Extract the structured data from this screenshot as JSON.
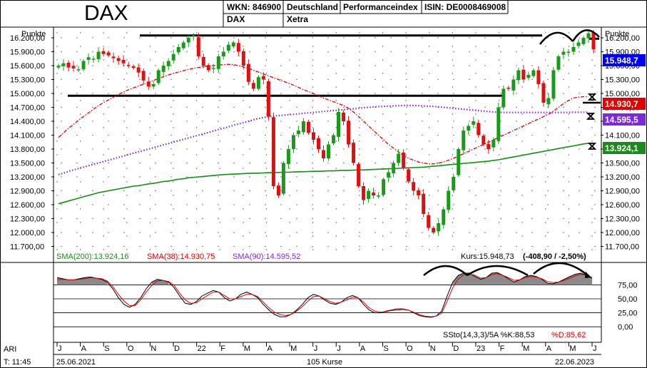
{
  "header": {
    "symbol": "DAX",
    "wkn": "WKN: 846900",
    "name": "DAX",
    "exchange_country": "Deutschland",
    "exchange": "Xetra",
    "index_type": "Performanceindex",
    "isin": "ISIN: DE0008469008"
  },
  "axis": {
    "unit_label": "Punkte"
  },
  "legend": {
    "sma200": "SMA(200):13.924,16",
    "sma38": "SMA(38):14.930,75",
    "sma90": "SMA(90):14.595,52",
    "kurs": "Kurs:15.948,73",
    "kurs_change": "(-408,90 / -2,50%)",
    "sto_label": "SSto(14,3,3)/5A %K:88,53",
    "sto_d": "%D:85,62"
  },
  "badges": [
    {
      "text": "15.948,7",
      "color": "#0000ff"
    },
    {
      "text": "14.930,7",
      "color": "#e00000"
    },
    {
      "text": "14.595,5",
      "color": "#7a2ad8"
    },
    {
      "text": "13.924,1",
      "color": "#1a8a1a"
    }
  ],
  "footer": {
    "ari": "ARI",
    "time": "T: 11:45",
    "start_date": "25.06.2021",
    "count": "105 Kurse",
    "end_date": "22.06.2023"
  },
  "colors": {
    "up": "#1a9a1a",
    "down": "#e01010",
    "sma200": "#1a8a1a",
    "sma38": "#e00000",
    "sma90": "#7a2ad8",
    "stoch_k": "#000000",
    "stoch_d": "#e00000"
  },
  "chart_data": [
    {
      "type": "candlestick",
      "title": "DAX",
      "ylabel": "Punkte",
      "ylim": [
        11600,
        16400
      ],
      "y_ticks": [
        "16.200,00",
        "15.900,00",
        "15.600,00",
        "15.300,00",
        "15.000,00",
        "14.700,00",
        "14.400,00",
        "14.100,00",
        "13.800,00",
        "13.500,00",
        "13.200,00",
        "12.900,00",
        "12.600,00",
        "12.300,00",
        "12.000,00",
        "11.700,00"
      ],
      "x_ticks": [
        "J",
        "A",
        "S",
        "O",
        "N",
        "D",
        "22",
        "F",
        "M",
        "A",
        "M",
        "J",
        "J",
        "A",
        "S",
        "O",
        "N",
        "D",
        "23",
        "F",
        "M",
        "A",
        "M",
        "J"
      ],
      "grid": true,
      "close": [
        15600,
        15650,
        15560,
        15540,
        15520,
        15700,
        15780,
        15750,
        15900,
        15850,
        15820,
        15760,
        15700,
        15650,
        15600,
        15550,
        15450,
        15280,
        15150,
        15200,
        15500,
        15600,
        15700,
        15850,
        16000,
        16100,
        16200,
        16250,
        15800,
        15600,
        15500,
        15550,
        15800,
        15900,
        16050,
        16100,
        15900,
        15600,
        15250,
        15100,
        15350,
        15300,
        14500,
        13000,
        12800,
        13500,
        13800,
        14100,
        14200,
        14400,
        14150,
        14000,
        13800,
        13600,
        13900,
        14100,
        14600,
        14400,
        13900,
        13500,
        13000,
        12700,
        12900,
        12800,
        12800,
        13150,
        13300,
        13500,
        13700,
        13400,
        13100,
        12900,
        12800,
        12400,
        12100,
        12000,
        12200,
        12500,
        12900,
        13200,
        13800,
        14200,
        14300,
        14400,
        14100,
        13900,
        13800,
        14000,
        14700,
        15100,
        15100,
        15300,
        15500,
        15300,
        15400,
        15500,
        15200,
        14800,
        14900,
        15500,
        15800,
        15900,
        15900,
        16000,
        16100,
        16200,
        16300,
        15950
      ],
      "sma200": [
        12620,
        12650,
        12680,
        12710,
        12740,
        12770,
        12800,
        12830,
        12860,
        12880,
        12900,
        12920,
        12940,
        12960,
        12980,
        13000,
        13010,
        13030,
        13050,
        13060,
        13080,
        13100,
        13110,
        13130,
        13150,
        13160,
        13180,
        13190,
        13200,
        13210,
        13220,
        13230,
        13240,
        13250,
        13255,
        13260,
        13265,
        13270,
        13275,
        13280,
        13280,
        13285,
        13290,
        13290,
        13295,
        13300,
        13300,
        13305,
        13310,
        13310,
        13315,
        13320,
        13320,
        13325,
        13330,
        13330,
        13335,
        13340,
        13340,
        13345,
        13350,
        13350,
        13355,
        13360,
        13365,
        13370,
        13375,
        13380,
        13385,
        13390,
        13395,
        13400,
        13405,
        13410,
        13420,
        13430,
        13440,
        13450,
        13460,
        13470,
        13480,
        13490,
        13500,
        13510,
        13520,
        13530,
        13540,
        13555,
        13570,
        13590,
        13610,
        13630,
        13650,
        13670,
        13690,
        13710,
        13730,
        13750,
        13770,
        13790,
        13810,
        13830,
        13850,
        13870,
        13890,
        13910,
        13924
      ],
      "sma38": [
        14050,
        14150,
        14250,
        14330,
        14420,
        14500,
        14580,
        14660,
        14740,
        14800,
        14860,
        14920,
        14980,
        15030,
        15080,
        15120,
        15160,
        15200,
        15240,
        15280,
        15320,
        15360,
        15400,
        15430,
        15460,
        15490,
        15520,
        15540,
        15560,
        15580,
        15590,
        15600,
        15610,
        15620,
        15630,
        15620,
        15600,
        15570,
        15540,
        15500,
        15460,
        15420,
        15380,
        15340,
        15300,
        15260,
        15220,
        15180,
        15130,
        15080,
        15040,
        15000,
        14950,
        14900,
        14860,
        14820,
        14780,
        14740,
        14680,
        14600,
        14500,
        14400,
        14300,
        14200,
        14100,
        14000,
        13900,
        13820,
        13740,
        13660,
        13600,
        13560,
        13520,
        13500,
        13480,
        13480,
        13500,
        13520,
        13560,
        13600,
        13650,
        13700,
        13750,
        13800,
        13850,
        13900,
        13950,
        14000,
        14050,
        14100,
        14150,
        14200,
        14250,
        14300,
        14350,
        14400,
        14450,
        14500,
        14550,
        14620,
        14700,
        14780,
        14850,
        14900,
        14920,
        14930,
        14930
      ],
      "sma90": [
        13250,
        13280,
        13320,
        13350,
        13380,
        13410,
        13440,
        13470,
        13500,
        13530,
        13560,
        13590,
        13620,
        13650,
        13680,
        13710,
        13740,
        13770,
        13800,
        13830,
        13860,
        13890,
        13920,
        13950,
        13980,
        14010,
        14040,
        14070,
        14100,
        14130,
        14160,
        14190,
        14220,
        14250,
        14280,
        14310,
        14340,
        14370,
        14400,
        14430,
        14460,
        14480,
        14500,
        14510,
        14520,
        14530,
        14540,
        14550,
        14560,
        14570,
        14580,
        14590,
        14600,
        14610,
        14620,
        14630,
        14640,
        14650,
        14660,
        14670,
        14680,
        14690,
        14700,
        14710,
        14715,
        14720,
        14725,
        14730,
        14735,
        14740,
        14740,
        14740,
        14735,
        14730,
        14725,
        14720,
        14710,
        14700,
        14690,
        14680,
        14670,
        14660,
        14650,
        14640,
        14630,
        14620,
        14610,
        14600,
        14595,
        14590,
        14590,
        14590,
        14590,
        14590,
        14590,
        14590,
        14590,
        14590,
        14590,
        14590,
        14590,
        14590,
        14592,
        14594,
        14595,
        14596,
        14596
      ],
      "hlines": [
        16250,
        14950
      ]
    },
    {
      "type": "line",
      "title": "SSto(14,3,3)/5A",
      "ylim": [
        -10,
        110
      ],
      "y_ticks": [
        "75,00",
        "50,00",
        "25,00",
        "0,00"
      ],
      "series": [
        {
          "name": "%K",
          "values": [
            88,
            86,
            84,
            84,
            86,
            88,
            89,
            87,
            85,
            80,
            68,
            52,
            40,
            35,
            40,
            52,
            68,
            80,
            85,
            83,
            80,
            70,
            55,
            42,
            40,
            45,
            55,
            60,
            65,
            62,
            52,
            46,
            50,
            58,
            62,
            58,
            52,
            40,
            30,
            22,
            18,
            18,
            22,
            30,
            40,
            52,
            58,
            55,
            48,
            42,
            40,
            44,
            52,
            56,
            52,
            40,
            30,
            25,
            25,
            28,
            30,
            32,
            32,
            30,
            25,
            20,
            18,
            17,
            19,
            28,
            55,
            80,
            92,
            96,
            96,
            90,
            85,
            88,
            96,
            97,
            92,
            86,
            80,
            84,
            90,
            92,
            90,
            85,
            78,
            77,
            80,
            85,
            90,
            94,
            96,
            92,
            88
          ]
        },
        {
          "name": "%D",
          "values": [
            84,
            85,
            84,
            84,
            85,
            86,
            88,
            87,
            86,
            82,
            72,
            58,
            46,
            38,
            38,
            48,
            62,
            74,
            82,
            83,
            81,
            74,
            60,
            48,
            42,
            43,
            50,
            56,
            62,
            62,
            56,
            50,
            50,
            54,
            58,
            58,
            54,
            44,
            34,
            26,
            22,
            20,
            22,
            28,
            36,
            46,
            54,
            55,
            50,
            45,
            42,
            44,
            48,
            53,
            52,
            44,
            34,
            28,
            26,
            27,
            29,
            30,
            31,
            30,
            26,
            22,
            19,
            18,
            19,
            24,
            46,
            70,
            86,
            93,
            95,
            92,
            87,
            88,
            93,
            95,
            92,
            88,
            83,
            84,
            88,
            90,
            89,
            86,
            81,
            79,
            80,
            83,
            87,
            91,
            94,
            92,
            86
          ]
        }
      ]
    }
  ]
}
